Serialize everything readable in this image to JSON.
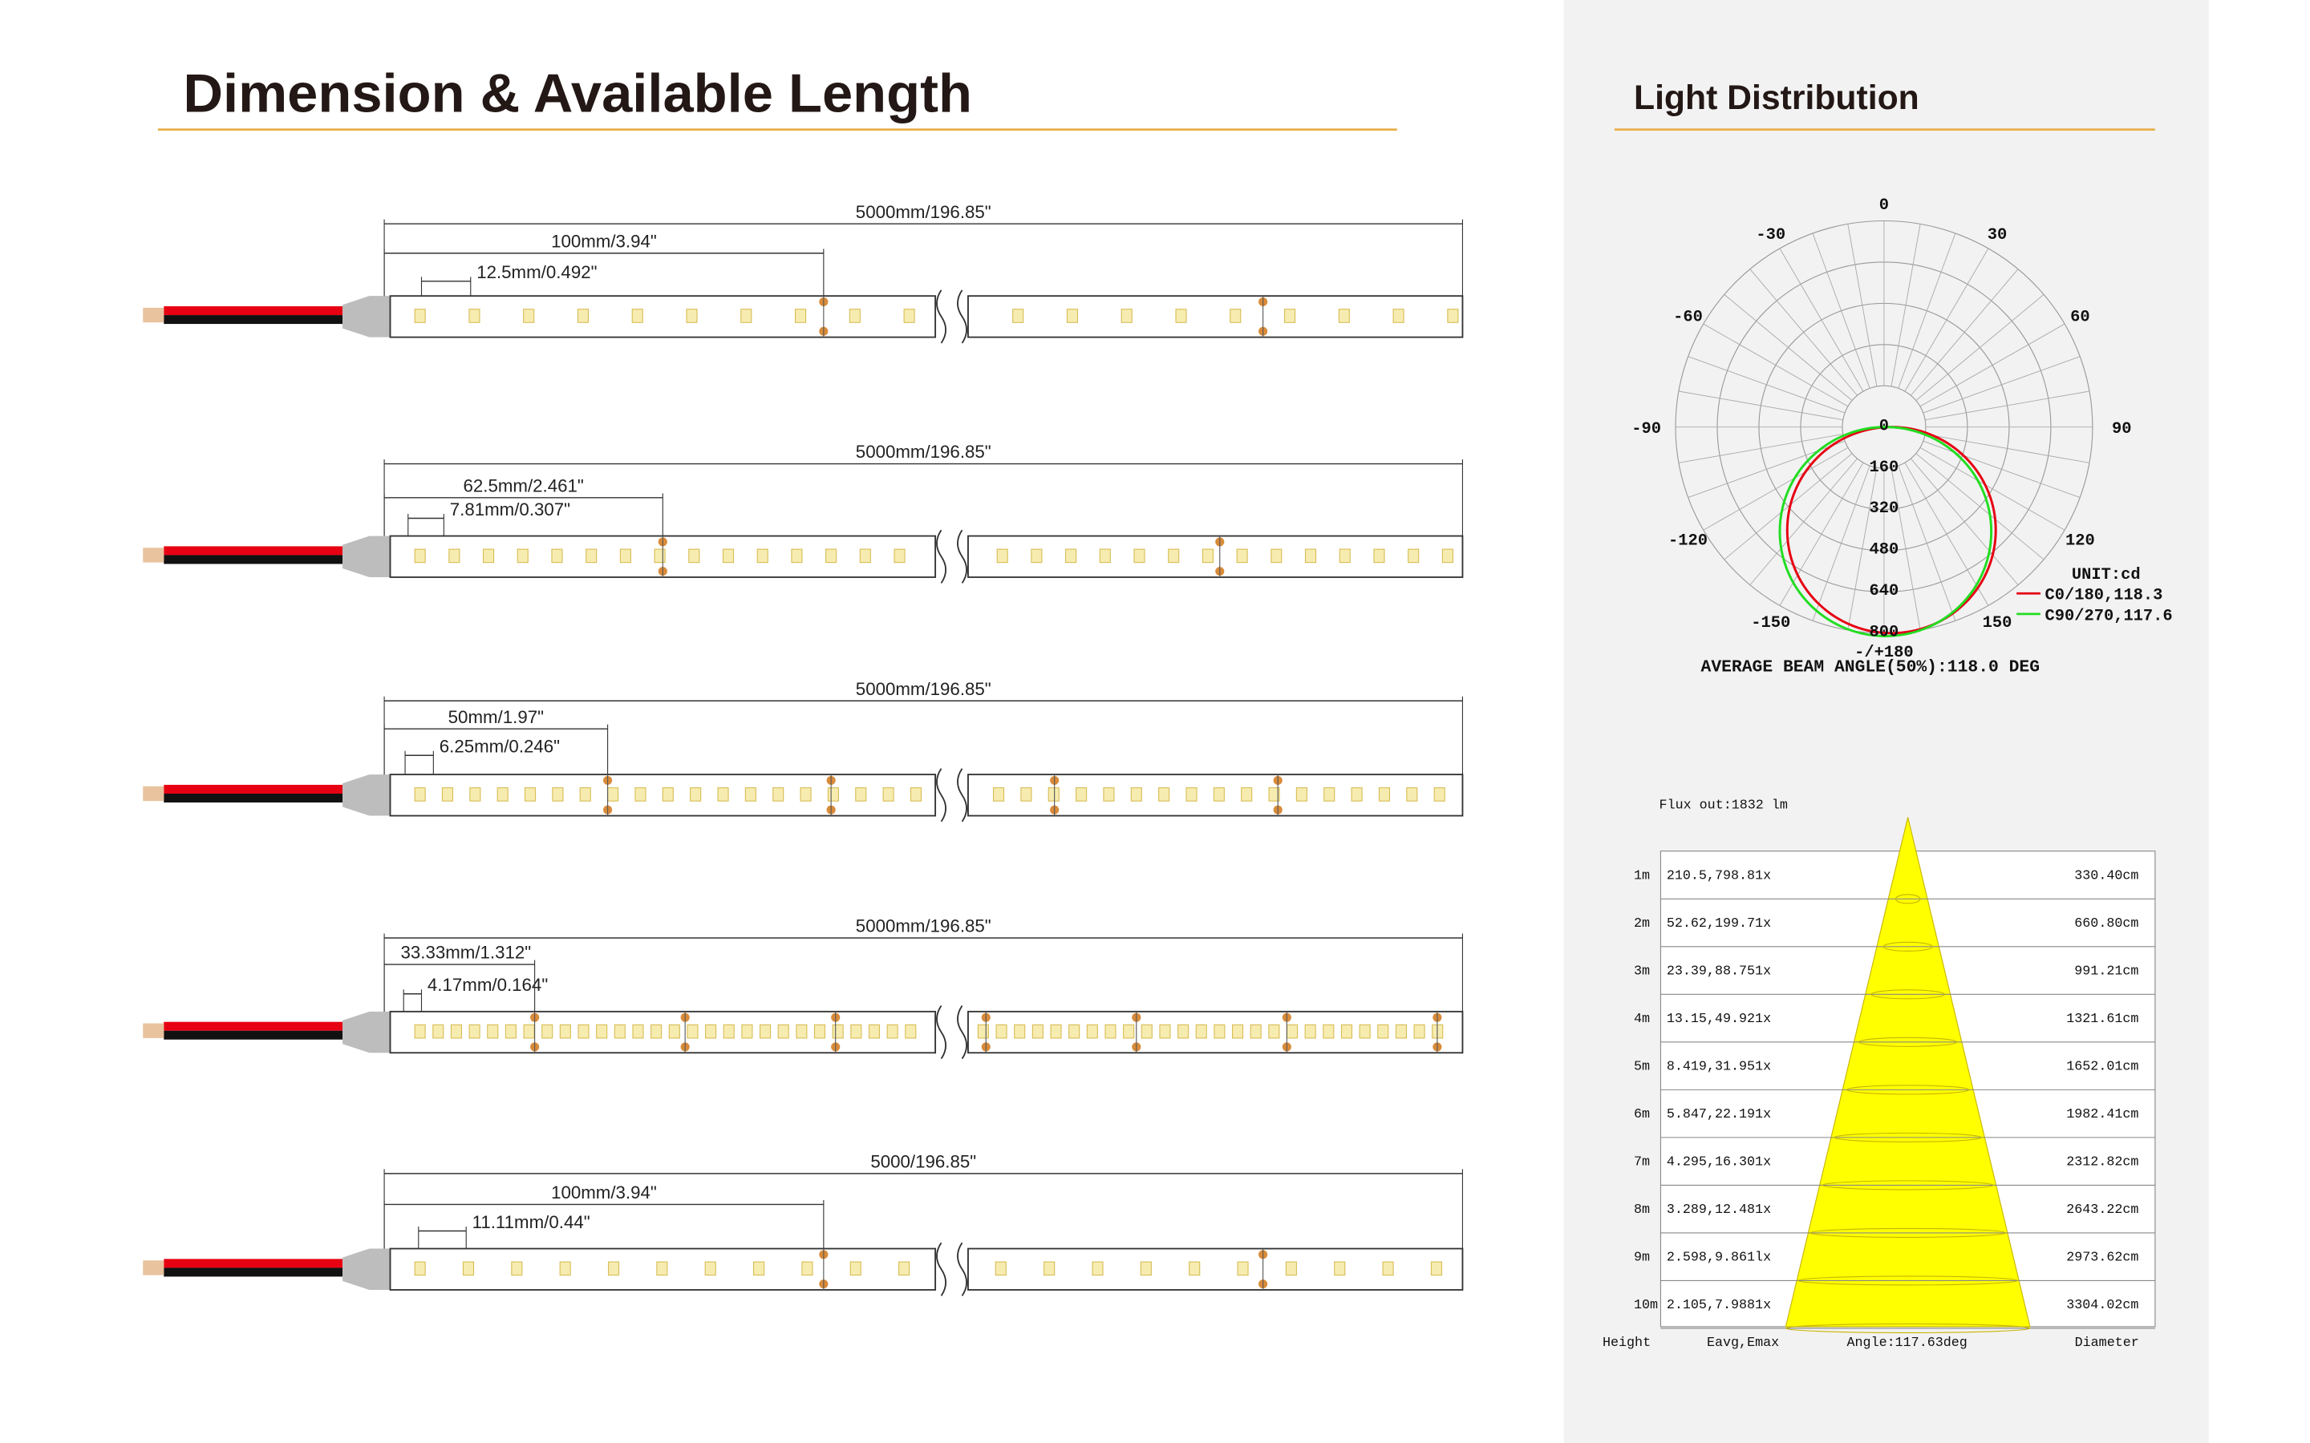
{
  "dimension": {
    "title": "Dimension & Available Length",
    "strips": [
      {
        "total": "5000mm/196.85\"",
        "segment": "100mm/3.94\"",
        "pitch": "12.5mm/0.492\""
      },
      {
        "total": "5000mm/196.85\"",
        "segment": "62.5mm/2.461\"",
        "pitch": "7.81mm/0.307\""
      },
      {
        "total": "5000mm/196.85\"",
        "segment": "50mm/1.97\"",
        "pitch": "6.25mm/0.246\""
      },
      {
        "total": "5000mm/196.85\"",
        "segment": "33.33mm/1.312\"",
        "pitch": "4.17mm/0.164\""
      },
      {
        "total": "5000/196.85\"",
        "segment": "100mm/3.94\"",
        "pitch": "11.11mm/0.44\""
      }
    ]
  },
  "light": {
    "title": "Light Distribution",
    "polar": {
      "angles": [
        "-/+180",
        "150",
        "120",
        "90",
        "60",
        "30",
        "0",
        "-30",
        "-60",
        "-90",
        "-120",
        "-150"
      ],
      "radial": [
        "0",
        "160",
        "320",
        "480",
        "640",
        "800"
      ],
      "unit": "UNIT:cd",
      "legend": [
        "C0/180,118.3",
        "C90/270,117.6"
      ],
      "beam": "AVERAGE BEAM ANGLE(50%):118.0 DEG"
    },
    "cone": {
      "flux": "Flux out:1832 lm",
      "rows": [
        {
          "height": "1m",
          "eavg": "210.5,798.81x",
          "diameter": "330.40cm"
        },
        {
          "height": "2m",
          "eavg": "52.62,199.71x",
          "diameter": "660.80cm"
        },
        {
          "height": "3m",
          "eavg": "23.39,88.751x",
          "diameter": "991.21cm"
        },
        {
          "height": "4m",
          "eavg": "13.15,49.921x",
          "diameter": "1321.61cm"
        },
        {
          "height": "5m",
          "eavg": "8.419,31.951x",
          "diameter": "1652.01cm"
        },
        {
          "height": "6m",
          "eavg": "5.847,22.191x",
          "diameter": "1982.41cm"
        },
        {
          "height": "7m",
          "eavg": "4.295,16.301x",
          "diameter": "2312.82cm"
        },
        {
          "height": "8m",
          "eavg": "3.289,12.481x",
          "diameter": "2643.22cm"
        },
        {
          "height": "9m",
          "eavg": "2.598,9.861lx",
          "diameter": "2973.62cm"
        },
        {
          "height": "10m",
          "eavg": "2.105,7.9881x",
          "diameter": "3304.02cm"
        }
      ],
      "footer": [
        "Height",
        "Eavg,Emax",
        "Angle:117.63deg",
        "Diameter"
      ]
    }
  }
}
